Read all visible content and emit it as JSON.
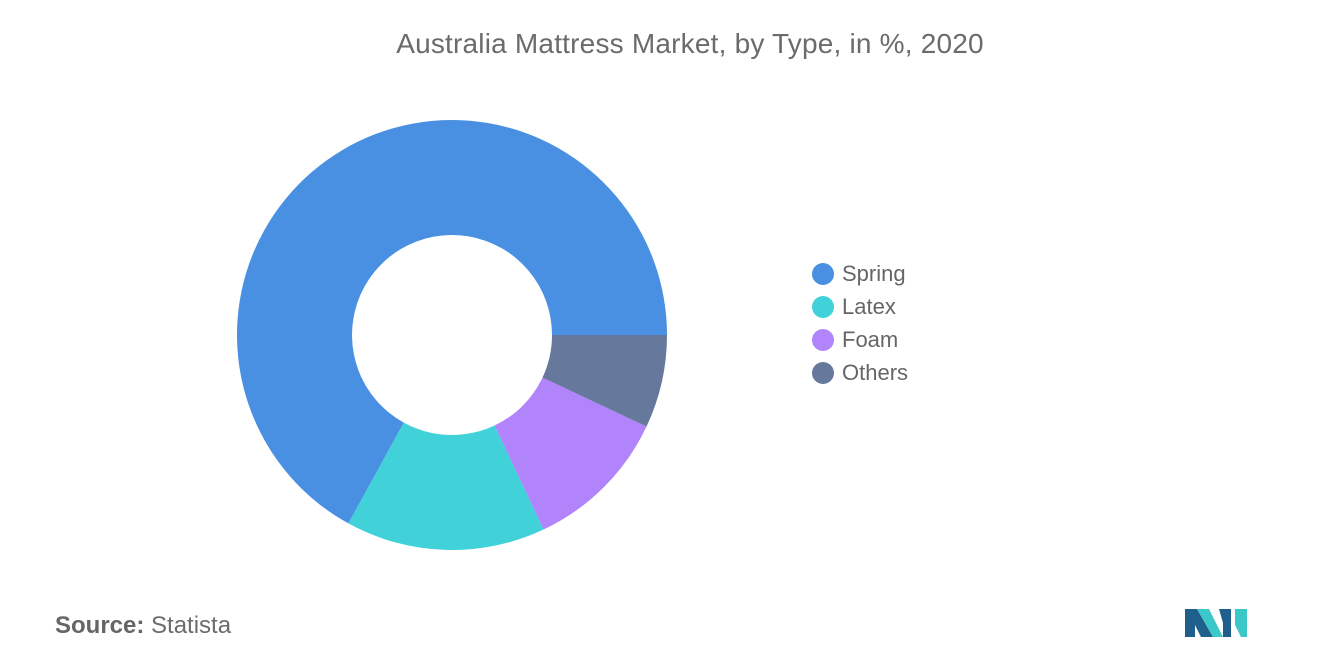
{
  "chart_data": {
    "type": "pie",
    "variant": "donut",
    "title": "Australia Mattress Market, by Type, in %, 2020",
    "categories": [
      "Spring",
      "Latex",
      "Foam",
      "Others"
    ],
    "values": [
      67,
      15,
      11,
      7
    ],
    "colors": [
      "#4a90e2",
      "#40d1d9",
      "#b184fb",
      "#66789b"
    ],
    "legend_position": "right"
  },
  "source": {
    "label": "Source:",
    "value": "Statista"
  },
  "logo": {
    "icon": "mordor-intelligence-logo-icon",
    "colors": [
      "#1f5f8b",
      "#3cc7c9"
    ]
  }
}
